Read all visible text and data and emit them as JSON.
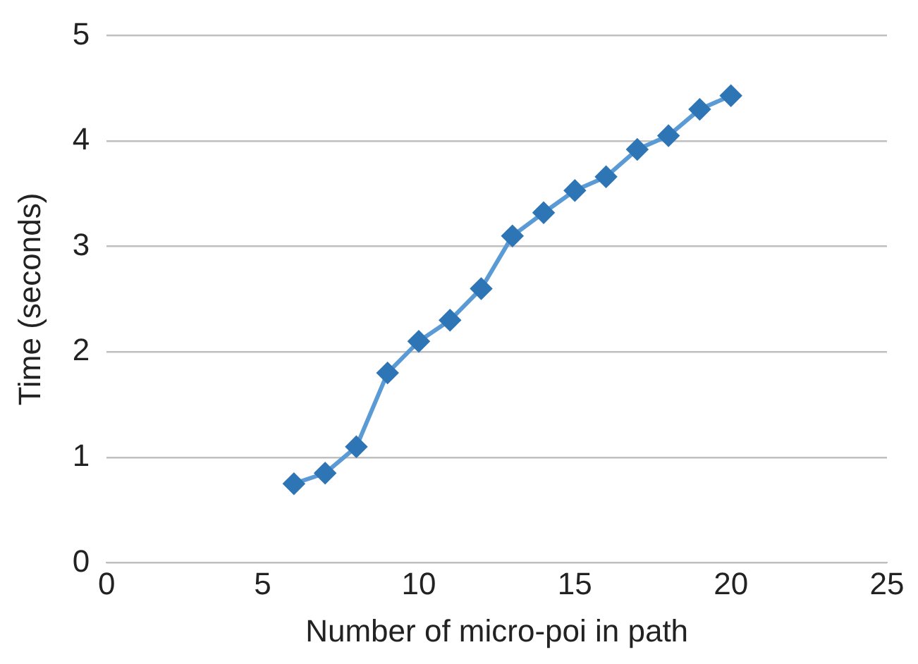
{
  "chart_data": {
    "type": "line",
    "xlabel": "Number of micro-poi in path",
    "ylabel": "Time (seconds)",
    "x": [
      6,
      7,
      8,
      9,
      10,
      11,
      12,
      13,
      14,
      15,
      16,
      17,
      18,
      19,
      20
    ],
    "series": [
      {
        "color": "#5b9bd5",
        "values": [
          0.75,
          0.85,
          1.1,
          1.8,
          2.1,
          2.3,
          2.6,
          3.1,
          3.32,
          3.53,
          3.66,
          3.92,
          4.05,
          4.3,
          4.43
        ]
      }
    ],
    "xlim": [
      0,
      25
    ],
    "xticks": [
      0,
      5,
      10,
      15,
      20,
      25
    ],
    "ylim": [
      0,
      5
    ],
    "yticks": [
      0,
      1,
      2,
      3,
      4,
      5
    ],
    "grid": "y",
    "legend": false,
    "marker": "diamond",
    "line_style": "solid"
  }
}
